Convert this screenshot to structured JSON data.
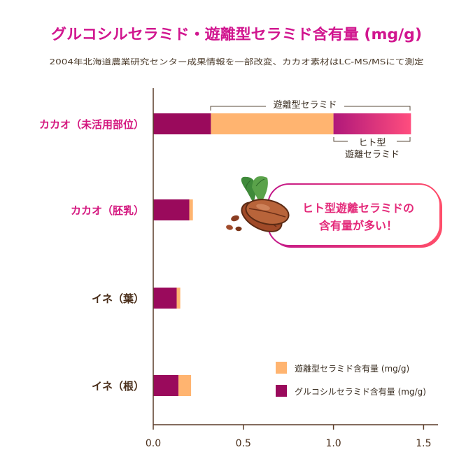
{
  "chart_data": {
    "type": "bar",
    "orientation": "horizontal",
    "stacked": true,
    "title": "グルコシルセラミド・遊離型セラミド含有量 (mg/g)",
    "subtitle": "2004年北海道農業研究センター成果情報を一部改変、カカオ素材はLC-MS/MSにて測定",
    "categories": [
      "カカオ（未活用部位）",
      "カカオ（胚乳）",
      "イネ（葉）",
      "イネ（根）"
    ],
    "series": [
      {
        "name": "グルコシルセラミド含有量 (mg/g)",
        "color": "#9a0a5c",
        "values": [
          0.32,
          0.2,
          0.13,
          0.14
        ]
      },
      {
        "name": "遊離型セラミド含有量 (mg/g)",
        "color": "#ffb470",
        "values": [
          1.11,
          0.02,
          0.02,
          0.07
        ]
      }
    ],
    "free_ceramide_split": {
      "segment_start": 0.32,
      "plain_end": 1.0,
      "end": 1.43
    },
    "highlight_color": "#f03a8a",
    "x_ticks": [
      "0.0",
      "0.5",
      "1.0",
      "1.5"
    ],
    "xlim": [
      0,
      1.58
    ],
    "legend_position": "bottom-right",
    "annotations": {
      "free_bracket": "遊離型セラミド",
      "human_type_line1": "ヒト型",
      "human_type_line2": "遊離セラミド",
      "callout_line1": "ヒト型遊離セラミドの",
      "callout_line2": "含有量が多い！"
    }
  }
}
